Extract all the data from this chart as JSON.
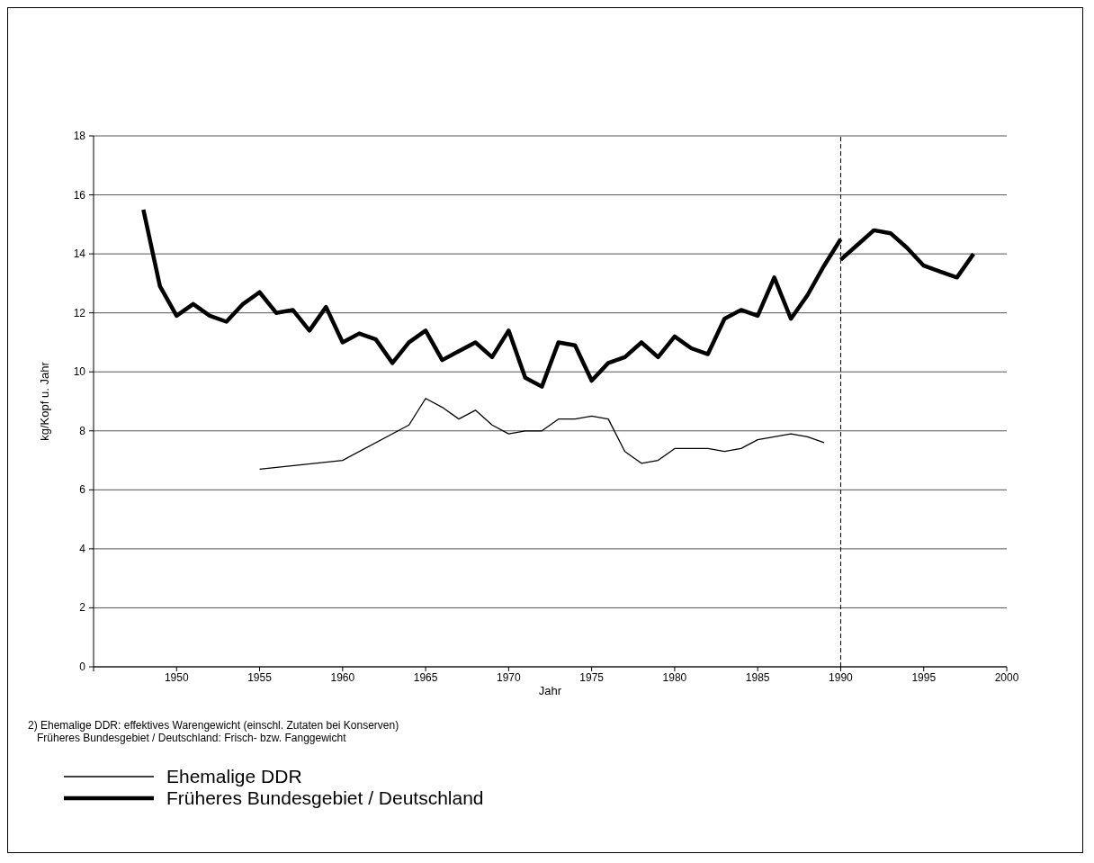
{
  "chart_data": {
    "type": "line",
    "xlabel": "Jahr",
    "ylabel": "kg/Kopf u. Jahr",
    "xlim": [
      1945,
      2000
    ],
    "xticks": [
      {
        "value": 1945,
        "label": null
      },
      1950,
      1955,
      1960,
      1965,
      1970,
      1975,
      1980,
      1985,
      1990,
      1995,
      2000
    ],
    "ylim": [
      0,
      18
    ],
    "yticks": [
      0,
      2,
      4,
      6,
      8,
      10,
      12,
      14,
      16,
      18
    ],
    "grid": "y",
    "legend": "bottom",
    "marker": "none",
    "line_style": "solid",
    "ref_lines": [
      {
        "axis": "x",
        "value": 1990,
        "color": "#000000",
        "line_style": "dashed"
      }
    ],
    "annotations": [
      "2) Ehemalige DDR: effektives Warengewicht (einschl. Zutaten bei Konserven)",
      "Früheres Bundesgebiet / Deutschland: Frisch- bzw. Fanggewicht"
    ],
    "series": [
      {
        "name": "Ehemalige DDR",
        "color": "#000000",
        "x": [
          1955,
          1960,
          1964,
          1965,
          1966,
          1967,
          1968,
          1969,
          1970,
          1971,
          1972,
          1973,
          1974,
          1975,
          1976,
          1977,
          1978,
          1979,
          1980,
          1981,
          1982,
          1983,
          1984,
          1985,
          1986,
          1987,
          1988,
          1989
        ],
        "values": [
          6.7,
          7.0,
          8.2,
          9.1,
          8.8,
          8.4,
          8.7,
          8.2,
          7.9,
          8.0,
          8.0,
          8.4,
          8.4,
          8.5,
          8.4,
          7.3,
          6.9,
          7.0,
          7.4,
          7.4,
          7.4,
          7.3,
          7.4,
          7.7,
          7.8,
          7.9,
          7.8,
          7.6
        ]
      },
      {
        "name": "Früheres Bundesgebiet / Deutschland",
        "color": "#000000",
        "x": [
          1948,
          1949,
          1950,
          1951,
          1952,
          1953,
          1954,
          1955,
          1956,
          1957,
          1958,
          1959,
          1960,
          1961,
          1962,
          1963,
          1964,
          1965,
          1966,
          1967,
          1968,
          1969,
          1970,
          1971,
          1972,
          1973,
          1974,
          1975,
          1976,
          1977,
          1978,
          1979,
          1980,
          1981,
          1982,
          1983,
          1984,
          1985,
          1986,
          1987,
          1988,
          1989,
          1990
        ],
        "values": [
          15.5,
          12.9,
          11.9,
          12.3,
          11.9,
          11.7,
          12.3,
          12.7,
          12.0,
          12.1,
          11.4,
          12.2,
          11.0,
          11.3,
          11.1,
          10.3,
          11.0,
          11.4,
          10.4,
          10.7,
          11.0,
          10.5,
          11.4,
          9.8,
          9.5,
          11.0,
          10.9,
          9.7,
          10.3,
          10.5,
          11.0,
          10.5,
          11.2,
          10.8,
          10.6,
          11.8,
          12.1,
          11.9,
          13.2,
          11.8,
          12.6,
          13.6,
          14.5
        ]
      },
      {
        "color": "#000000",
        "x": [
          1990,
          1991,
          1992,
          1993,
          1994,
          1995,
          1996,
          1997,
          1998
        ],
        "values": [
          13.8,
          14.3,
          14.8,
          14.7,
          14.2,
          13.6,
          13.4,
          13.2,
          14.0
        ]
      }
    ]
  }
}
